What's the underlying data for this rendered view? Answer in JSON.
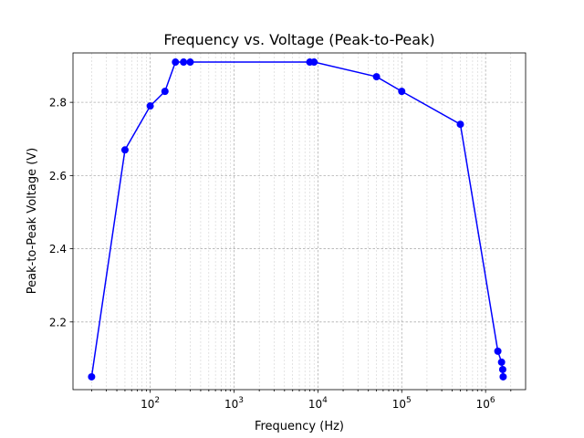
{
  "chart_data": {
    "type": "line",
    "title": "Frequency vs. Voltage (Peak-to-Peak)",
    "xlabel": "Frequency (Hz)",
    "ylabel": "Peak-to-Peak Voltage (V)",
    "xscale": "log",
    "xlim": [
      12,
      3000000
    ],
    "ylim": [
      2.015,
      2.935
    ],
    "grid": true,
    "line_color": "#0000ff",
    "marker": "circle",
    "x_ticks": [
      {
        "value": 100,
        "base": "10",
        "exp": "2"
      },
      {
        "value": 1000,
        "base": "10",
        "exp": "3"
      },
      {
        "value": 10000,
        "base": "10",
        "exp": "4"
      },
      {
        "value": 100000,
        "base": "10",
        "exp": "5"
      },
      {
        "value": 1000000,
        "base": "10",
        "exp": "6"
      }
    ],
    "y_ticks": [
      {
        "value": 2.2,
        "label": "2.2"
      },
      {
        "value": 2.4,
        "label": "2.4"
      },
      {
        "value": 2.6,
        "label": "2.6"
      },
      {
        "value": 2.8,
        "label": "2.8"
      }
    ],
    "series": [
      {
        "x": [
          20,
          50,
          100,
          150,
          200,
          250,
          300,
          8000,
          9000,
          50000,
          100000,
          500000,
          1400000,
          1550000,
          1600000,
          1620000
        ],
        "y": [
          2.05,
          2.67,
          2.79,
          2.83,
          2.91,
          2.91,
          2.91,
          2.91,
          2.91,
          2.87,
          2.83,
          2.74,
          2.12,
          2.09,
          2.07,
          2.05
        ]
      }
    ]
  }
}
